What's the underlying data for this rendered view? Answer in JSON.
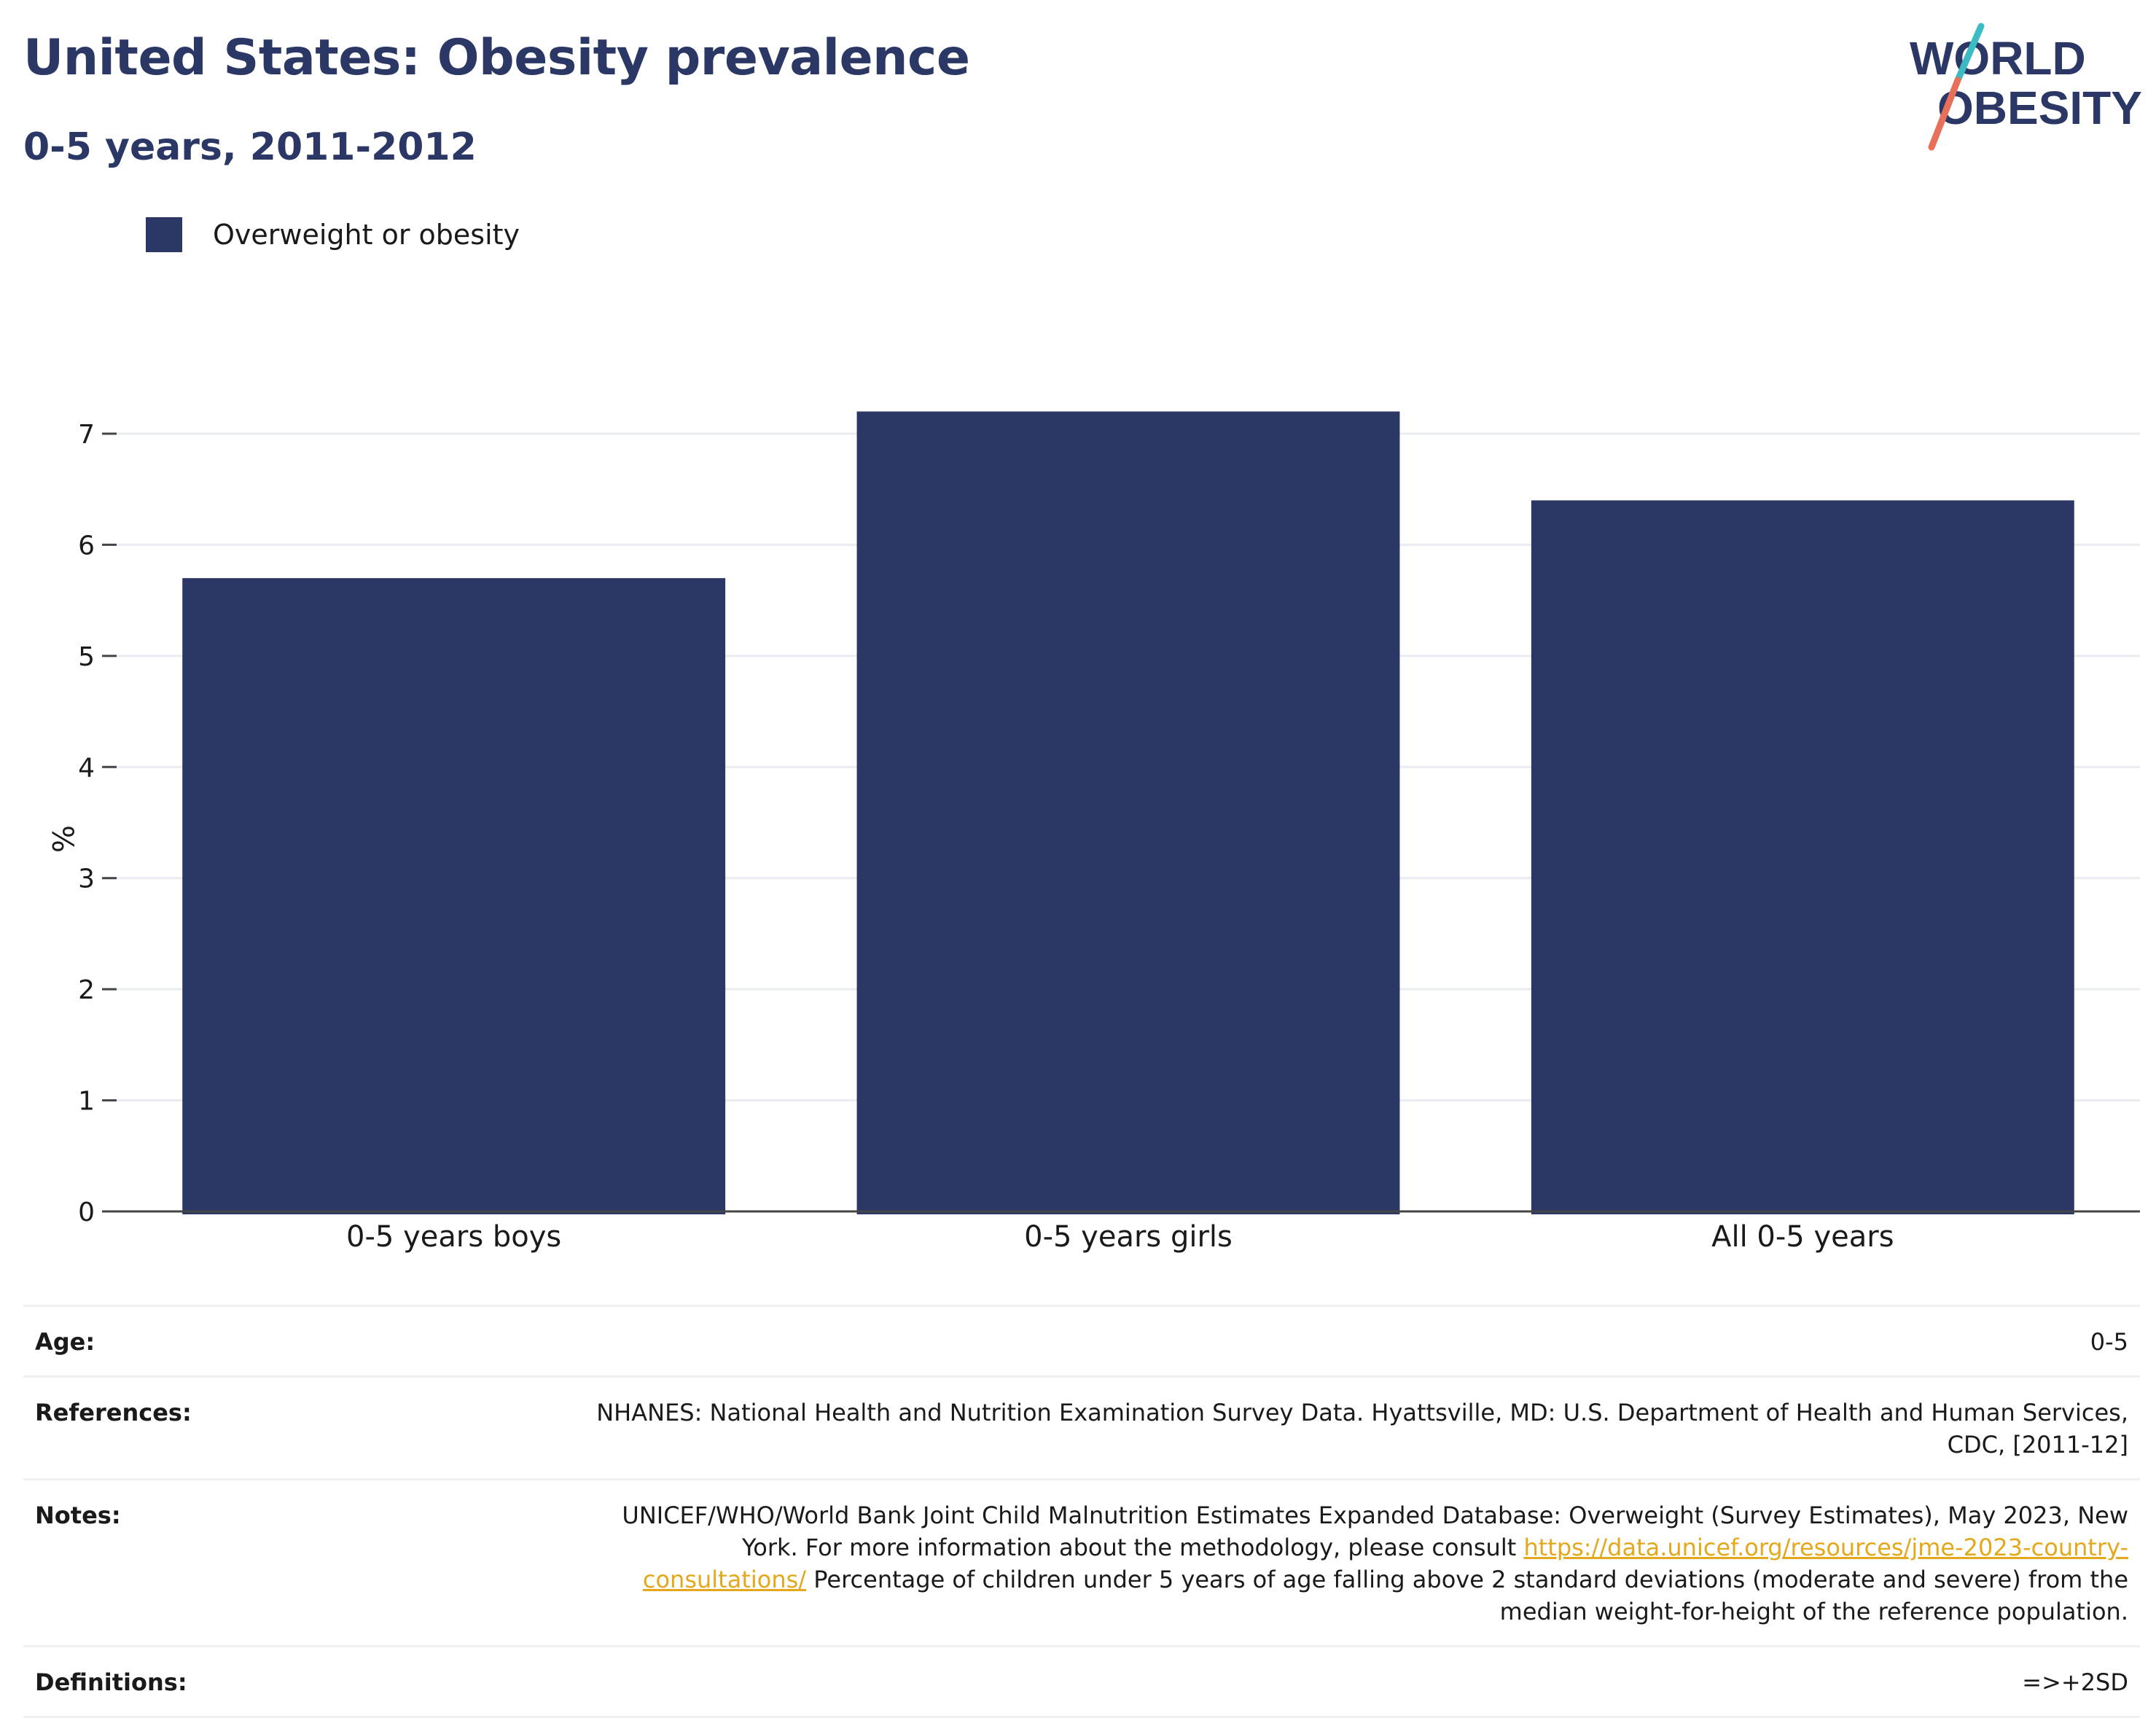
{
  "header": {
    "title": "United States: Obesity prevalence",
    "subtitle": "0-5 years, 2011-2012"
  },
  "logo": {
    "line1": "WORLD",
    "line2": "OBESITY",
    "accent_colors": [
      "#3cbcc2",
      "#e8705a"
    ]
  },
  "legend": {
    "label": "Overweight or obesity"
  },
  "chart_data": {
    "type": "bar",
    "categories": [
      "0-5 years boys",
      "0-5 years girls",
      "All 0-5 years"
    ],
    "series": [
      {
        "name": "Overweight or obesity",
        "values": [
          5.7,
          7.2,
          6.4
        ],
        "color": "#2b3764"
      }
    ],
    "ylabel": "%",
    "yticks": [
      0,
      1,
      2,
      3,
      4,
      5,
      6,
      7
    ],
    "ylim": [
      0,
      7.5
    ],
    "grid": true,
    "legend_position": "top-left"
  },
  "meta": {
    "age": {
      "key": "Age:",
      "value": "0-5"
    },
    "references": {
      "key": "References:",
      "value": "NHANES: National Health and Nutrition Examination Survey Data. Hyattsville, MD: U.S. Department of Health and Human Services, CDC, [2011-12]"
    },
    "notes": {
      "key": "Notes:",
      "value_before": "UNICEF/WHO/World Bank Joint Child Malnutrition Estimates Expanded Database: Overweight (Survey Estimates), May 2023, New York. For more information about the methodology, please consult ",
      "link": "https://data.unicef.org/resources/jme-2023-country-consultations/",
      "value_after": " Percentage of children under 5 years of age falling above 2 standard deviations (moderate and severe) from the median weight-for-height of the reference population."
    },
    "definitions": {
      "key": "Definitions:",
      "value": "=>+2SD"
    }
  }
}
